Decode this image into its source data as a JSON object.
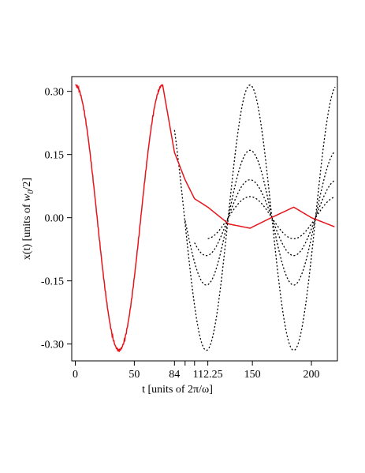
{
  "chart_data": {
    "type": "line",
    "xlabel": "t [units of 2π/ω]",
    "ylabel_prefix": "x(t) [units of ",
    "ylabel_var": "w",
    "ylabel_sub": "0",
    "ylabel_suffix": "/2]",
    "xlim": [
      -3,
      222
    ],
    "ylim": [
      -0.34,
      0.335
    ],
    "x_ticks": [
      {
        "value": 0,
        "label": "0"
      },
      {
        "value": 50,
        "label": "50"
      },
      {
        "value": 84,
        "label": "84"
      },
      {
        "value": 93,
        "label": ""
      },
      {
        "value": 101,
        "label": ""
      },
      {
        "value": 112.25,
        "label": "112.25"
      },
      {
        "value": 150,
        "label": "150"
      },
      {
        "value": 200,
        "label": "200"
      }
    ],
    "y_ticks": [
      {
        "value": 0.3,
        "label": "0.30"
      },
      {
        "value": 0.15,
        "label": "0.15"
      },
      {
        "value": 0.0,
        "label": "0.00"
      },
      {
        "value": -0.15,
        "label": "-0.15"
      },
      {
        "value": -0.3,
        "label": "-0.30"
      }
    ],
    "colors": {
      "main": "#e8141b",
      "dotted": "#000000",
      "axis": "#000000"
    },
    "grid": false,
    "period": 74,
    "main_series": {
      "name": "",
      "style": "solid",
      "points": [
        [
          0,
          0.315
        ],
        [
          74,
          0.315
        ],
        [
          84,
          0.155
        ],
        [
          93,
          0.09
        ],
        [
          101,
          0.045
        ],
        [
          112.25,
          0.025
        ],
        [
          130,
          -0.015
        ],
        [
          148,
          -0.025
        ],
        [
          166,
          0.0
        ],
        [
          185,
          0.025
        ],
        [
          200,
          0.0
        ],
        [
          220,
          -0.022
        ]
      ]
    },
    "dotted_series": [
      {
        "start": 84,
        "amplitude": 0.315,
        "style": "dotted"
      },
      {
        "start": 93,
        "amplitude": 0.16,
        "style": "dotted"
      },
      {
        "start": 101,
        "amplitude": 0.09,
        "style": "dotted"
      },
      {
        "start": 112.25,
        "amplitude": 0.05,
        "style": "dotted"
      }
    ]
  }
}
